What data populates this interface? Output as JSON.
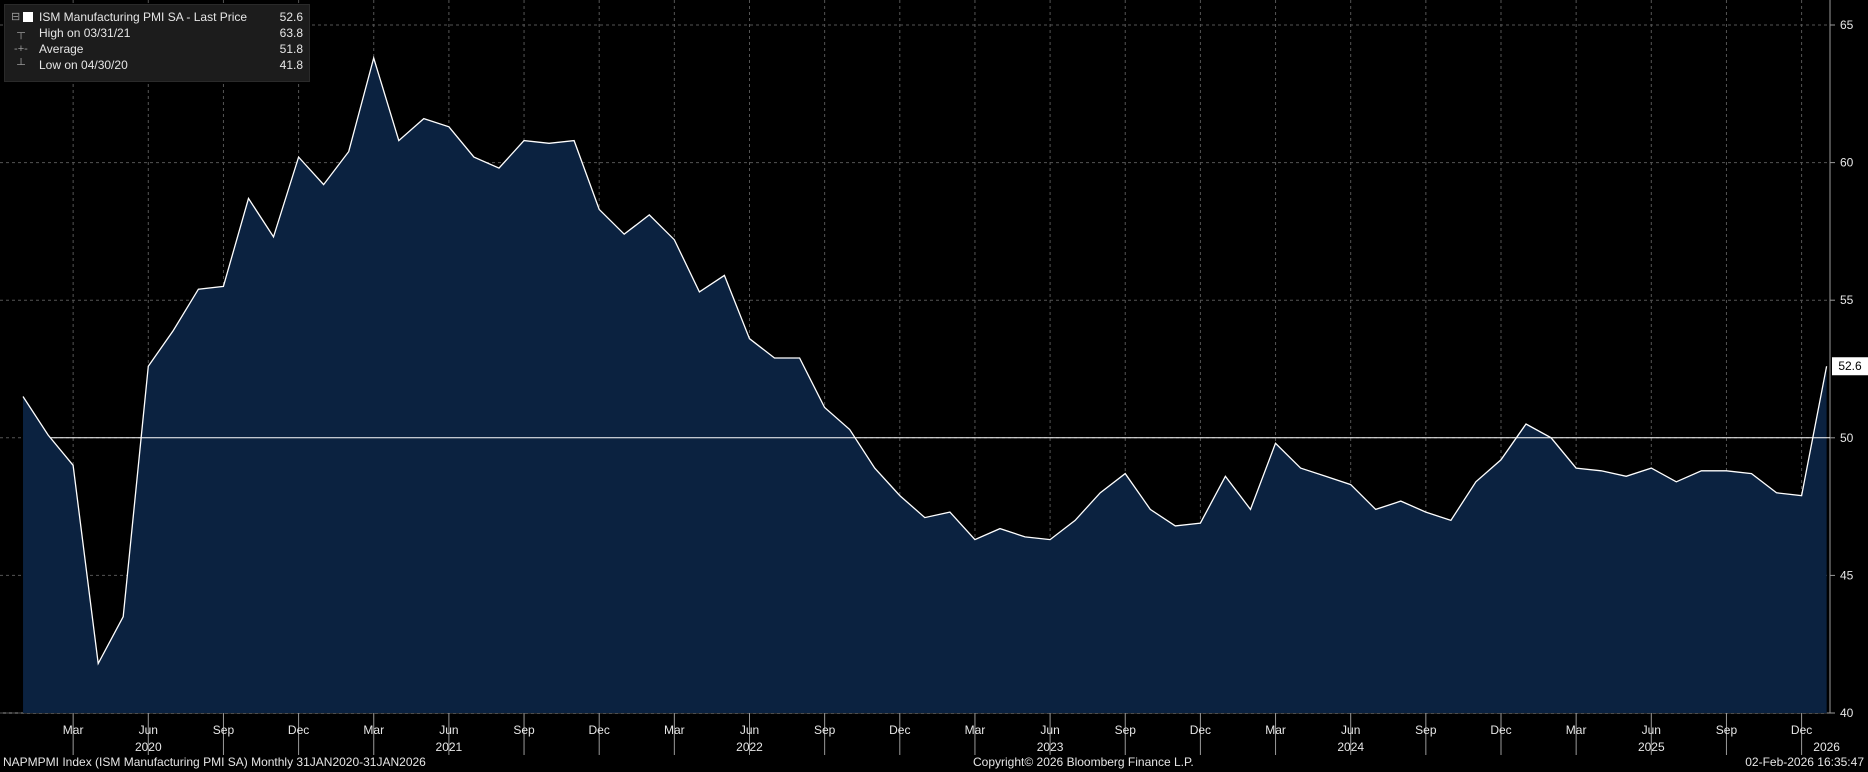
{
  "legend": {
    "title": "ISM Manufacturing PMI SA - Last Price",
    "last_value": "52.6",
    "high_label": "High on 03/31/21",
    "high_value": "63.8",
    "average_label": "Average",
    "average_value": "51.8",
    "low_label": "Low on 04/30/20",
    "low_value": "41.8"
  },
  "footer": {
    "left": "NAPMPMI Index (ISM Manufacturing PMI SA) Monthly 31JAN2020-31JAN2026",
    "center": "Copyright© 2026 Bloomberg Finance L.P.",
    "right": "02-Feb-2026 16:35:47"
  },
  "colors": {
    "line": "#ffffff",
    "area": "#0b2240",
    "background": "#000000",
    "grid": "#555555",
    "reference_line": "#ffffff"
  },
  "chart_data": {
    "type": "area",
    "title": "ISM Manufacturing PMI SA - Last Price",
    "frequency": "Monthly",
    "x": [
      "2020-01",
      "2020-02",
      "2020-03",
      "2020-04",
      "2020-05",
      "2020-06",
      "2020-07",
      "2020-08",
      "2020-09",
      "2020-10",
      "2020-11",
      "2020-12",
      "2021-01",
      "2021-02",
      "2021-03",
      "2021-04",
      "2021-05",
      "2021-06",
      "2021-07",
      "2021-08",
      "2021-09",
      "2021-10",
      "2021-11",
      "2021-12",
      "2022-01",
      "2022-02",
      "2022-03",
      "2022-04",
      "2022-05",
      "2022-06",
      "2022-07",
      "2022-08",
      "2022-09",
      "2022-10",
      "2022-11",
      "2022-12",
      "2023-01",
      "2023-02",
      "2023-03",
      "2023-04",
      "2023-05",
      "2023-06",
      "2023-07",
      "2023-08",
      "2023-09",
      "2023-10",
      "2023-11",
      "2023-12",
      "2024-01",
      "2024-02",
      "2024-03",
      "2024-04",
      "2024-05",
      "2024-06",
      "2024-07",
      "2024-08",
      "2024-09",
      "2024-10",
      "2024-11",
      "2024-12",
      "2025-01",
      "2025-02",
      "2025-03",
      "2025-04",
      "2025-05",
      "2025-06",
      "2025-07",
      "2025-08",
      "2025-09",
      "2025-10",
      "2025-11",
      "2025-12",
      "2026-01"
    ],
    "series": [
      {
        "values": [
          51.5,
          50.1,
          49.0,
          41.8,
          43.5,
          52.6,
          53.9,
          55.4,
          55.5,
          58.7,
          57.3,
          60.2,
          59.2,
          60.4,
          63.8,
          60.8,
          61.6,
          61.3,
          60.2,
          59.8,
          60.8,
          60.7,
          60.8,
          58.3,
          57.4,
          58.1,
          57.2,
          55.3,
          55.9,
          53.6,
          52.9,
          52.9,
          51.1,
          50.3,
          48.9,
          47.9,
          47.1,
          47.3,
          46.3,
          46.7,
          46.4,
          46.3,
          47.0,
          48.0,
          48.7,
          47.4,
          46.8,
          46.9,
          48.6,
          47.4,
          49.8,
          48.9,
          48.6,
          48.3,
          47.4,
          47.7,
          47.3,
          47.0,
          48.4,
          49.2,
          50.5,
          50.0,
          48.9,
          48.8,
          48.6,
          48.9,
          48.4,
          48.8,
          48.8,
          48.7,
          48.0,
          47.9,
          52.6
        ]
      }
    ],
    "last_price": 52.6,
    "high": {
      "date": "03/31/21",
      "value": 63.8
    },
    "low": {
      "date": "04/30/20",
      "value": 41.8
    },
    "average": 51.8,
    "reference_line": 50,
    "ylim": [
      40,
      65
    ],
    "y_ticks": [
      40,
      45,
      50,
      55,
      60,
      65
    ],
    "x_tick_labels": [
      {
        "date": "2020-03",
        "label": "Mar"
      },
      {
        "date": "2020-06",
        "label": "Jun"
      },
      {
        "date": "2020-09",
        "label": "Sep"
      },
      {
        "date": "2020-12",
        "label": "Dec"
      },
      {
        "date": "2021-03",
        "label": "Mar"
      },
      {
        "date": "2021-06",
        "label": "Jun"
      },
      {
        "date": "2021-09",
        "label": "Sep"
      },
      {
        "date": "2021-12",
        "label": "Dec"
      },
      {
        "date": "2022-03",
        "label": "Mar"
      },
      {
        "date": "2022-06",
        "label": "Jun"
      },
      {
        "date": "2022-09",
        "label": "Sep"
      },
      {
        "date": "2022-12",
        "label": "Dec"
      },
      {
        "date": "2023-03",
        "label": "Mar"
      },
      {
        "date": "2023-06",
        "label": "Jun"
      },
      {
        "date": "2023-09",
        "label": "Sep"
      },
      {
        "date": "2023-12",
        "label": "Dec"
      },
      {
        "date": "2024-03",
        "label": "Mar"
      },
      {
        "date": "2024-06",
        "label": "Jun"
      },
      {
        "date": "2024-09",
        "label": "Sep"
      },
      {
        "date": "2024-12",
        "label": "Dec"
      },
      {
        "date": "2025-03",
        "label": "Mar"
      },
      {
        "date": "2025-06",
        "label": "Jun"
      },
      {
        "date": "2025-09",
        "label": "Sep"
      },
      {
        "date": "2025-12",
        "label": "Dec"
      }
    ],
    "year_labels": [
      {
        "date": "2020-06",
        "label": "2020"
      },
      {
        "date": "2021-06",
        "label": "2021"
      },
      {
        "date": "2022-06",
        "label": "2022"
      },
      {
        "date": "2023-06",
        "label": "2023"
      },
      {
        "date": "2024-06",
        "label": "2024"
      },
      {
        "date": "2025-06",
        "label": "2025"
      },
      {
        "date": "2026-01",
        "label": "2026"
      }
    ],
    "grid": true,
    "legend_position": "top-left"
  }
}
